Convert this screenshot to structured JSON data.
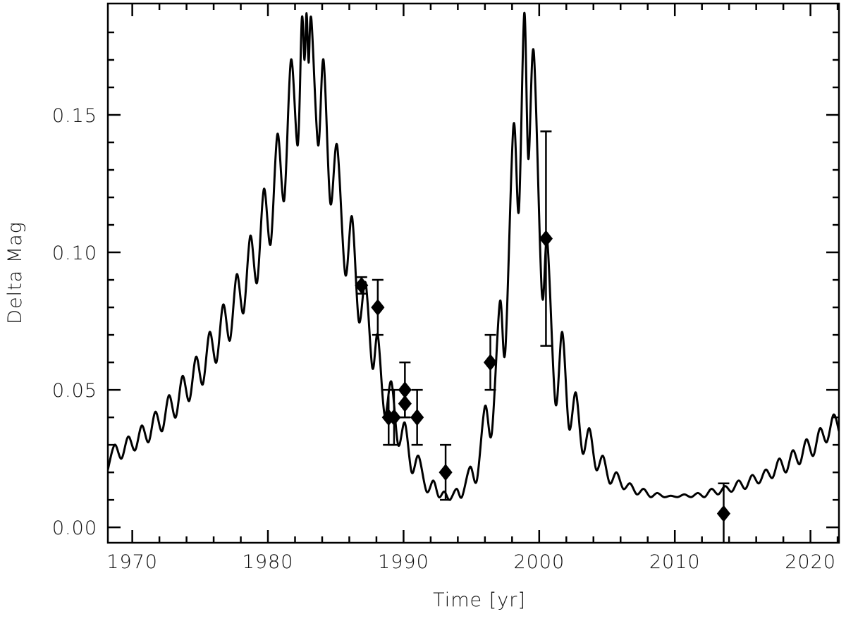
{
  "chart_data": {
    "type": "line",
    "xlabel": "Time [yr]",
    "ylabel": "Delta Mag",
    "xlim": [
      1968.2,
      2022.1
    ],
    "ylim": [
      -0.0056,
      0.1905
    ],
    "xticks": [
      1970,
      1980,
      1990,
      2000,
      2010,
      2020
    ],
    "yticks": [
      {
        "value": 0,
        "label": "0.00"
      },
      0.05,
      {
        "value": 0.1,
        "label": "0.10"
      },
      0.15
    ],
    "xminorticks": [
      1968,
      1972,
      1974,
      1976,
      1978,
      1982,
      1984,
      1986,
      1988,
      1992,
      1994,
      1996,
      1998,
      2002,
      2004,
      2006,
      2008,
      2012,
      2014,
      2016,
      2018,
      2022
    ],
    "yminorticks": [
      0.01,
      0.02,
      0.03,
      0.04,
      0.06,
      0.07,
      0.08,
      0.09,
      0.11,
      0.12,
      0.13,
      0.14,
      0.16,
      0.17,
      0.18
    ],
    "mirror_ticks": true,
    "series": [
      {
        "color": "#000000",
        "x": [
          1968.2,
          1968.7,
          1969.2,
          1969.7,
          1970.2,
          1970.7,
          1971.2,
          1971.7,
          1972.2,
          1972.7,
          1973.2,
          1973.7,
          1974.2,
          1974.7,
          1975.2,
          1975.7,
          1976.2,
          1976.7,
          1977.2,
          1977.7,
          1978.2,
          1978.7,
          1979.2,
          1979.7,
          1980.2,
          1980.7,
          1981.2,
          1981.7,
          1982.2,
          1982.5,
          1982.7,
          1982.85,
          1983.0,
          1983.2,
          1983.7,
          1984.1,
          1984.6,
          1985.1,
          1985.7,
          1986.2,
          1986.7,
          1987.2,
          1987.7,
          1988.1,
          1988.6,
          1989.1,
          1989.6,
          1990.1,
          1990.6,
          1991.1,
          1991.7,
          1992.2,
          1992.6,
          1993.0,
          1993.4,
          1993.9,
          1994.3,
          1994.9,
          1995.4,
          1996.0,
          1996.5,
          1997.1,
          1997.5,
          1998.1,
          1998.5,
          1998.9,
          1999.2,
          1999.6,
          2000.2,
          2000.6,
          2001.2,
          2001.7,
          2002.2,
          2002.7,
          2003.2,
          2003.7,
          2004.2,
          2004.7,
          2005.2,
          2005.7,
          2006.2,
          2006.7,
          2007.2,
          2007.7,
          2008.2,
          2008.7,
          2009.2,
          2009.7,
          2010.2,
          2010.7,
          2011.2,
          2011.7,
          2012.2,
          2012.7,
          2013.2,
          2013.7,
          2014.2,
          2014.7,
          2015.2,
          2015.7,
          2016.2,
          2016.7,
          2017.2,
          2017.7,
          2018.2,
          2018.7,
          2019.2,
          2019.7,
          2020.2,
          2020.7,
          2021.2,
          2021.7,
          2022.1
        ],
        "values": [
          0.021,
          0.03,
          0.025,
          0.033,
          0.028,
          0.037,
          0.031,
          0.042,
          0.035,
          0.048,
          0.04,
          0.055,
          0.046,
          0.062,
          0.052,
          0.071,
          0.06,
          0.081,
          0.068,
          0.092,
          0.078,
          0.106,
          0.089,
          0.123,
          0.103,
          0.143,
          0.119,
          0.17,
          0.139,
          0.185,
          0.17,
          0.187,
          0.169,
          0.185,
          0.139,
          0.17,
          0.118,
          0.139,
          0.092,
          0.113,
          0.075,
          0.089,
          0.058,
          0.07,
          0.041,
          0.053,
          0.03,
          0.038,
          0.02,
          0.026,
          0.013,
          0.017,
          0.011,
          0.013,
          0.01,
          0.014,
          0.011,
          0.022,
          0.017,
          0.044,
          0.034,
          0.082,
          0.064,
          0.146,
          0.115,
          0.187,
          0.134,
          0.173,
          0.085,
          0.104,
          0.045,
          0.071,
          0.036,
          0.049,
          0.027,
          0.036,
          0.021,
          0.026,
          0.016,
          0.02,
          0.014,
          0.016,
          0.012,
          0.014,
          0.011,
          0.0125,
          0.011,
          0.0115,
          0.011,
          0.012,
          0.011,
          0.0125,
          0.011,
          0.014,
          0.012,
          0.015,
          0.013,
          0.017,
          0.014,
          0.019,
          0.016,
          0.021,
          0.018,
          0.025,
          0.02,
          0.028,
          0.023,
          0.032,
          0.026,
          0.036,
          0.031,
          0.041,
          0.035
        ]
      },
      {
        "color": "#000000",
        "marker": "diamond",
        "x": [
          1986.9,
          1988.1,
          1988.9,
          1989.3,
          1990.1,
          1990.1,
          1991.0,
          1993.1,
          1996.4,
          2000.5,
          2013.6
        ],
        "values": [
          0.088,
          0.08,
          0.04,
          0.04,
          0.05,
          0.045,
          0.04,
          0.02,
          0.06,
          0.105,
          0.005
        ],
        "errors": [
          0.003,
          0.01,
          0.01,
          0.01,
          0.01,
          0.005,
          0.01,
          0.01,
          0.01,
          0.039,
          0.011
        ]
      }
    ]
  }
}
